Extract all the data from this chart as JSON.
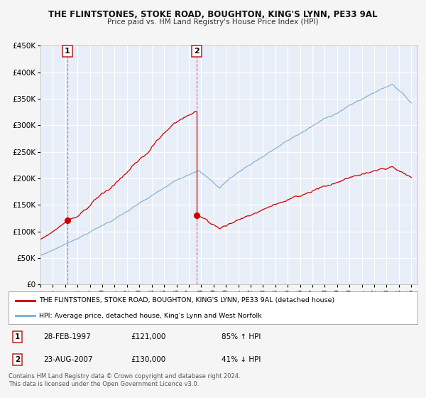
{
  "title": "THE FLINTSTONES, STOKE ROAD, BOUGHTON, KING'S LYNN, PE33 9AL",
  "subtitle": "Price paid vs. HM Land Registry's House Price Index (HPI)",
  "legend_line1": "THE FLINTSTONES, STOKE ROAD, BOUGHTON, KING'S LYNN, PE33 9AL (detached house)",
  "legend_line2": "HPI: Average price, detached house, King's Lynn and West Norfolk",
  "annotation1_label": "1",
  "annotation1_date": "28-FEB-1997",
  "annotation1_price": "£121,000",
  "annotation1_hpi": "85% ↑ HPI",
  "annotation2_label": "2",
  "annotation2_date": "23-AUG-2007",
  "annotation2_price": "£130,000",
  "annotation2_hpi": "41% ↓ HPI",
  "footer1": "Contains HM Land Registry data © Crown copyright and database right 2024.",
  "footer2": "This data is licensed under the Open Government Licence v3.0.",
  "red_color": "#cc0000",
  "blue_color": "#7aadd4",
  "background_color": "#e8eef8",
  "ylim": [
    0,
    450000
  ],
  "yticks": [
    0,
    50000,
    100000,
    150000,
    200000,
    250000,
    300000,
    350000,
    400000,
    450000
  ],
  "sale1_year": 1997.17,
  "sale1_price": 121000,
  "sale2_year": 2007.65,
  "sale2_price": 130000,
  "xmin": 1995,
  "xmax": 2025.5
}
